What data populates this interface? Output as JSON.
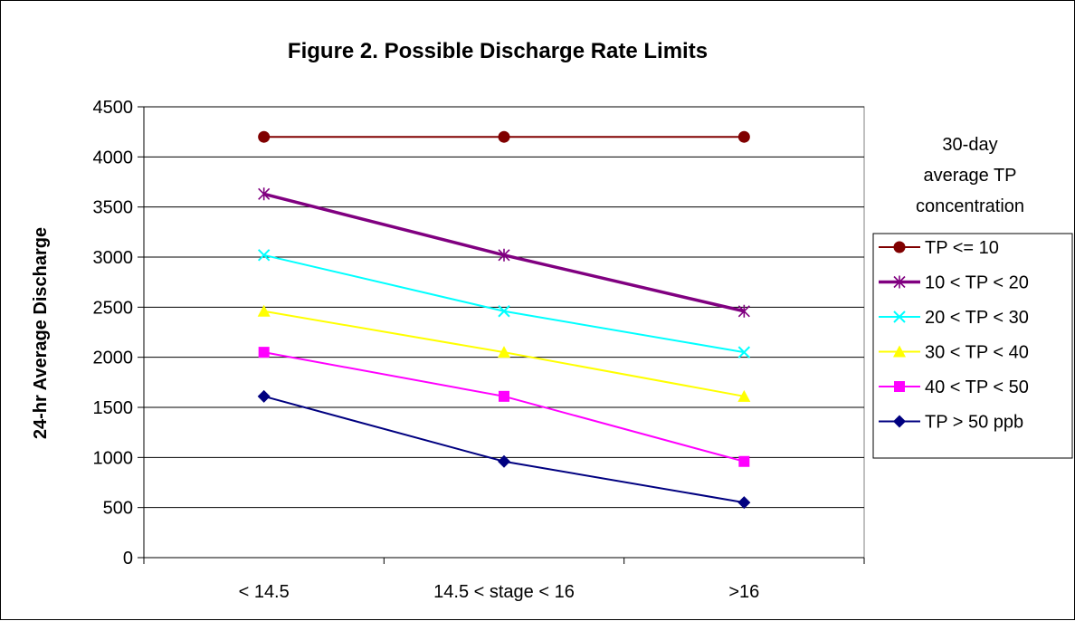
{
  "chart_data": {
    "type": "line",
    "title": "Figure 2. Possible Discharge Rate Limits",
    "xlabel": "",
    "ylabel": "24-hr Average Discharge",
    "categories": [
      "< 14.5",
      "14.5 < stage < 16",
      ">16"
    ],
    "ylim": [
      0,
      4500
    ],
    "yticks": [
      "0",
      "500",
      "1000",
      "1500",
      "2000",
      "2500",
      "3000",
      "3500",
      "4000",
      "4500"
    ],
    "grid": "horizontal major gridlines",
    "legend_position": "right",
    "legend_title": [
      "30-day",
      "average TP",
      "concentration"
    ],
    "series": [
      {
        "name": "TP <= 10",
        "values": [
          4200,
          4200,
          4200
        ],
        "color": "#800000",
        "marker": "circle"
      },
      {
        "name": "10 < TP < 20",
        "values": [
          3630,
          3020,
          2460
        ],
        "color": "#800080",
        "marker": "asterisk"
      },
      {
        "name": "20 < TP < 30",
        "values": [
          3020,
          2460,
          2050
        ],
        "color": "#00FFFF",
        "marker": "x"
      },
      {
        "name": "30 < TP < 40",
        "values": [
          2460,
          2050,
          1610
        ],
        "color": "#FFFF00",
        "marker": "triangle"
      },
      {
        "name": "40 < TP < 50",
        "values": [
          2050,
          1610,
          960
        ],
        "color": "#FF00FF",
        "marker": "square"
      },
      {
        "name": "TP > 50 ppb",
        "values": [
          1610,
          960,
          550
        ],
        "color": "#000080",
        "marker": "diamond"
      }
    ]
  }
}
